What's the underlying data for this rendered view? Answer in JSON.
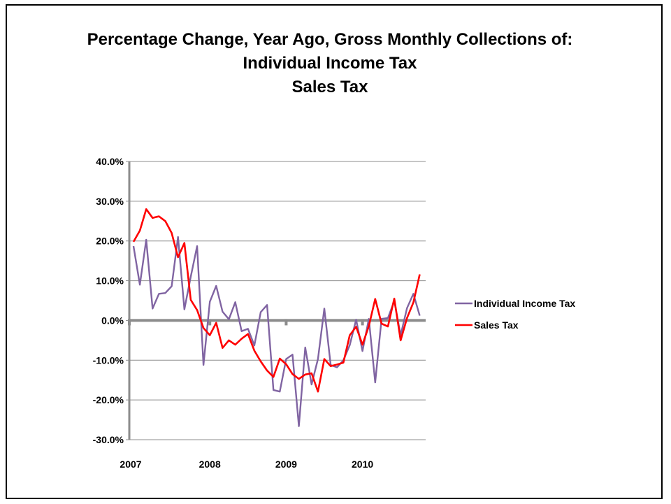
{
  "chart_data": {
    "type": "line",
    "title_lines": [
      "Percentage Change, Year Ago, Gross Monthly Collections of:",
      "Individual Income Tax",
      "Sales Tax"
    ],
    "xlabel": "",
    "ylabel": "",
    "ylim": [
      -30,
      40
    ],
    "y_ticks": [
      -30,
      -20,
      -10,
      0,
      10,
      20,
      30,
      40
    ],
    "y_tick_labels": [
      "-30.0%",
      "-20.0%",
      "-10.0%",
      "0.0%",
      "10.0%",
      "20.0%",
      "30.0%",
      "40.0%"
    ],
    "x_tick_labels": [
      "2007",
      "2008",
      "2009",
      "2010"
    ],
    "grid": true,
    "legend_position": "right",
    "colors": {
      "Individual Income Tax": "#8064a2",
      "Sales Tax": "#ff0000"
    },
    "series": [
      {
        "name": "Individual Income Tax",
        "values": [
          18.7,
          9.0,
          20.3,
          3.0,
          6.7,
          6.9,
          8.6,
          21.0,
          2.8,
          11.0,
          18.7,
          -11.2,
          4.7,
          8.7,
          2.2,
          0.3,
          4.6,
          -2.7,
          -2.1,
          -6.3,
          2.1,
          3.9,
          -17.5,
          -17.9,
          -9.7,
          -8.6,
          -26.6,
          -6.8,
          -16.1,
          -9.7,
          3.0,
          -11.2,
          -11.8,
          -10.0,
          -6.2,
          0.2,
          -7.7,
          0.4,
          -15.6,
          0.4,
          0.6,
          4.9,
          -3.7,
          3.1,
          6.7,
          1.2
        ]
      },
      {
        "name": "Sales Tax",
        "values": [
          19.8,
          22.6,
          28.0,
          25.8,
          26.2,
          25.0,
          22.0,
          15.9,
          19.5,
          5.2,
          2.6,
          -1.9,
          -3.7,
          -0.6,
          -6.9,
          -5.0,
          -6.1,
          -4.6,
          -3.4,
          -7.6,
          -10.3,
          -12.6,
          -14.2,
          -9.6,
          -11.0,
          -13.5,
          -14.7,
          -13.6,
          -13.3,
          -17.9,
          -9.7,
          -11.5,
          -11.1,
          -10.6,
          -3.7,
          -1.6,
          -6.1,
          -1.4,
          5.4,
          -0.8,
          -1.5,
          5.5,
          -5.0,
          0.6,
          4.5,
          11.6
        ]
      }
    ]
  }
}
